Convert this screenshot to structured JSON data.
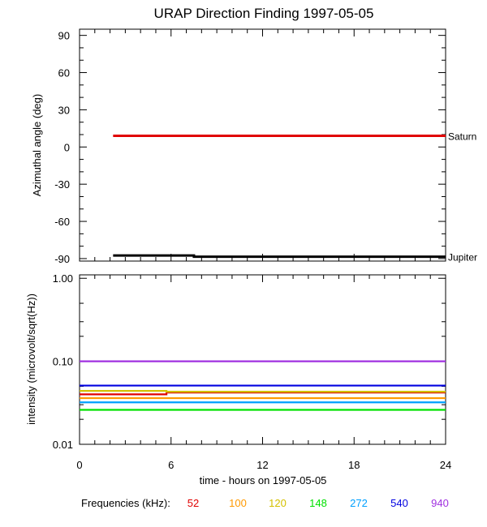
{
  "title": "URAP Direction Finding  1997-05-05",
  "chart_data": [
    {
      "type": "line",
      "ylabel": "Azimuthal angle (deg)",
      "ylim": [
        -92,
        95
      ],
      "yticks": [
        90,
        60,
        30,
        0,
        -30,
        -60,
        -90
      ],
      "xlim": [
        0,
        24
      ],
      "series": [
        {
          "name": "Saturn",
          "color": "#e00000",
          "x": [
            2.2,
            24
          ],
          "y": [
            9,
            9
          ]
        },
        {
          "name": "Jupiter",
          "color": "#000000",
          "x": [
            2.2,
            7.5,
            7.5,
            24
          ],
          "y": [
            -87.5,
            -87.5,
            -88.5,
            -88.5
          ]
        }
      ]
    },
    {
      "type": "line",
      "ylabel": "intensity (microvolt/sqrt(Hz))",
      "yscale": "log",
      "ylim": [
        0.01,
        1.1
      ],
      "yticks": [
        1.0,
        0.1,
        0.01
      ],
      "ytick_labels": [
        "1.00",
        "0.10",
        "0.01"
      ],
      "xlim": [
        0,
        24
      ],
      "xticks": [
        0,
        6,
        12,
        18,
        24
      ],
      "xlabel": "time - hours on 1997-05-05",
      "series": [
        {
          "name": "52",
          "color": "#e00000",
          "x": [
            0,
            5.7,
            5.7,
            24
          ],
          "y": [
            0.04,
            0.04,
            0.042,
            0.042
          ]
        },
        {
          "name": "100",
          "color": "#ff9900",
          "x": [
            0,
            24
          ],
          "y": [
            0.036,
            0.036
          ]
        },
        {
          "name": "120",
          "color": "#d4c000",
          "x": [
            0,
            5.7,
            5.7,
            24
          ],
          "y": [
            0.044,
            0.044,
            0.043,
            0.043
          ]
        },
        {
          "name": "148",
          "color": "#00e000",
          "x": [
            0,
            24
          ],
          "y": [
            0.026,
            0.026
          ]
        },
        {
          "name": "272",
          "color": "#00a0ff",
          "x": [
            0,
            24
          ],
          "y": [
            0.032,
            0.032
          ]
        },
        {
          "name": "540",
          "color": "#0000e0",
          "x": [
            0,
            24
          ],
          "y": [
            0.051,
            0.051
          ]
        },
        {
          "name": "940",
          "color": "#a030e0",
          "x": [
            0,
            24
          ],
          "y": [
            0.1,
            0.1
          ]
        }
      ]
    }
  ],
  "legend": {
    "label": "Frequencies (kHz):",
    "items": [
      {
        "text": "52",
        "color": "#e00000"
      },
      {
        "text": "100",
        "color": "#ff9900"
      },
      {
        "text": "120",
        "color": "#d4c000"
      },
      {
        "text": "148",
        "color": "#00e000"
      },
      {
        "text": "272",
        "color": "#00a0ff"
      },
      {
        "text": "540",
        "color": "#0000e0"
      },
      {
        "text": "940",
        "color": "#a030e0"
      }
    ]
  }
}
